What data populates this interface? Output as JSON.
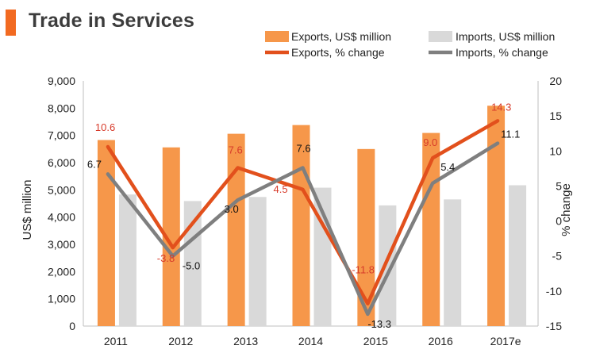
{
  "title": "Trade in Services",
  "colors": {
    "title_accent": "#f26a21",
    "exports_bar": "#f6974a",
    "imports_bar": "#d9d9d9",
    "exports_line": "#e2501c",
    "imports_line": "#7f7f7f",
    "exports_label": "#d73a2a",
    "imports_label": "#111111"
  },
  "chart_data": {
    "type": "bar+line",
    "categories": [
      "2011",
      "2012",
      "2013",
      "2014",
      "2015",
      "2016",
      "2017e"
    ],
    "bars": [
      {
        "name": "Exports, US$ million",
        "values": [
          6830,
          6560,
          7060,
          7380,
          6500,
          7090,
          8090
        ]
      },
      {
        "name": "Imports, US$ million",
        "values": [
          4830,
          4590,
          4740,
          5080,
          4430,
          4650,
          5170
        ]
      }
    ],
    "lines": [
      {
        "name": "Exports, % change",
        "values": [
          10.6,
          -3.8,
          7.6,
          4.5,
          -11.8,
          9.0,
          14.3
        ],
        "labels": [
          "10.6",
          "-3.8",
          "7.6",
          "4.5",
          "-11.8",
          "9.0",
          "14.3"
        ]
      },
      {
        "name": "Imports, % change",
        "values": [
          6.7,
          -5.0,
          3.0,
          7.6,
          -13.3,
          5.4,
          11.1
        ],
        "labels": [
          "6.7",
          "-5.0",
          "3.0",
          "7.6",
          "-13.3",
          "5.4",
          "11.1"
        ]
      }
    ],
    "y_left": {
      "label": "US$ million",
      "min": 0,
      "max": 9000,
      "step": 1000,
      "ticks": [
        "0",
        "1,000",
        "2,000",
        "3,000",
        "4,000",
        "5,000",
        "6,000",
        "7,000",
        "8,000",
        "9,000"
      ]
    },
    "y_right": {
      "label": "% change",
      "min": -15,
      "max": 20,
      "step": 5,
      "ticks": [
        "-15",
        "-10",
        "-5",
        "0",
        "5",
        "10",
        "15",
        "20"
      ]
    },
    "legend_position": "top-right"
  }
}
